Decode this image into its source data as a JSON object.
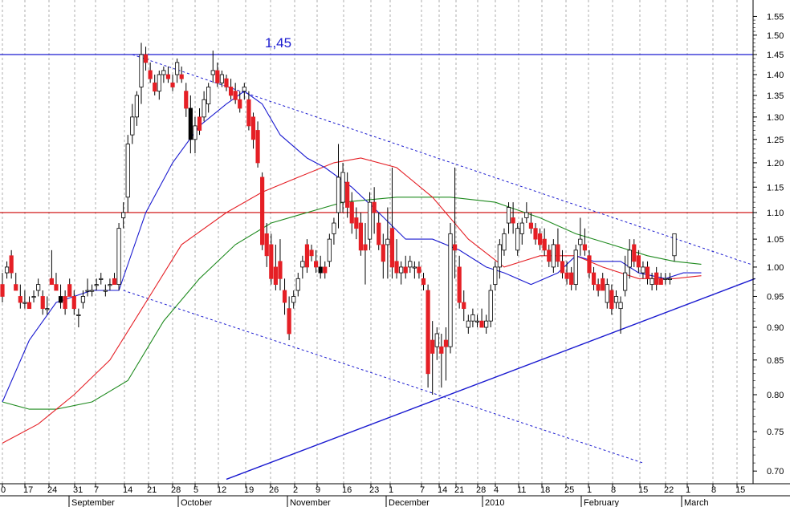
{
  "chart_data": {
    "type": "candlestick",
    "title": "",
    "xlabel": "",
    "ylabel": "",
    "y_scale": "log",
    "ylim": [
      0.69,
      1.58
    ],
    "grid": "vertical-dotted",
    "colors": {
      "up_body": "#ffffff",
      "down_body": "#e51f25",
      "black_body": "#000000",
      "ma_short": "#1a1ad0",
      "ma_mid": "#e51f25",
      "ma_long": "#1e8a1e",
      "trend": "#1a1ad0",
      "h_red": "#cc0000",
      "h_blue": "#1a1ad0"
    },
    "y_ticks": [
      "0.70",
      "0.75",
      "0.80",
      "0.85",
      "0.90",
      "0.95",
      "1.00",
      "1.05",
      "1.10",
      "1.15",
      "1.20",
      "1.25",
      "1.30",
      "1.35",
      "1.40",
      "1.45",
      "1.50",
      "1.55"
    ],
    "x_ticks": [
      "0",
      "17",
      "24",
      "31",
      "7",
      "14",
      "21",
      "28",
      "5",
      "12",
      "19",
      "26",
      "2",
      "9",
      "16",
      "23",
      "1",
      "7",
      "14",
      "21",
      "28",
      "4",
      "11",
      "18",
      "25",
      "1",
      "8",
      "15",
      "22",
      "1",
      "8",
      "15"
    ],
    "months": [
      "September",
      "October",
      "November",
      "December",
      "2010",
      "February",
      "March"
    ],
    "annotations": [
      {
        "text": "1,45",
        "y": 1.45
      }
    ],
    "horizontal_lines": [
      1.45,
      1.1
    ],
    "candles": [
      [
        0.97,
        0.99,
        0.94,
        0.95
      ],
      [
        0.99,
        1.01,
        0.98,
        1.0
      ],
      [
        1.02,
        1.03,
        0.98,
        0.99
      ],
      [
        0.97,
        0.99,
        0.96,
        0.96
      ],
      [
        0.95,
        0.97,
        0.93,
        0.94
      ],
      [
        0.94,
        0.96,
        0.93,
        0.94
      ],
      [
        0.94,
        0.95,
        0.93,
        0.93
      ],
      [
        0.95,
        0.96,
        0.94,
        0.95
      ],
      [
        0.96,
        0.98,
        0.95,
        0.97
      ],
      [
        0.95,
        0.96,
        0.92,
        0.93
      ],
      [
        0.93,
        0.95,
        0.92,
        0.93
      ],
      [
        0.98,
        1.03,
        0.97,
        0.97
      ],
      [
        0.97,
        0.99,
        0.96,
        0.96
      ],
      [
        0.95,
        0.97,
        0.93,
        0.94
      ],
      [
        0.95,
        0.96,
        0.92,
        0.93
      ],
      [
        0.97,
        0.98,
        0.95,
        0.95
      ],
      [
        0.95,
        0.96,
        0.92,
        0.93
      ],
      [
        0.92,
        0.93,
        0.9,
        0.92
      ],
      [
        0.94,
        0.96,
        0.93,
        0.95
      ],
      [
        0.96,
        0.98,
        0.95,
        0.96
      ],
      [
        0.96,
        0.97,
        0.95,
        0.96
      ],
      [
        0.97,
        0.98,
        0.96,
        0.97
      ],
      [
        0.98,
        0.99,
        0.97,
        0.98
      ],
      [
        0.96,
        0.97,
        0.95,
        0.96
      ],
      [
        0.97,
        0.98,
        0.96,
        0.97
      ],
      [
        0.98,
        0.99,
        0.97,
        0.97
      ],
      [
        0.97,
        1.08,
        0.96,
        1.07
      ],
      [
        1.09,
        1.12,
        1.07,
        1.1
      ],
      [
        1.13,
        1.26,
        1.1,
        1.24
      ],
      [
        1.26,
        1.33,
        1.24,
        1.3
      ],
      [
        1.3,
        1.36,
        1.28,
        1.35
      ],
      [
        1.37,
        1.48,
        1.33,
        1.45
      ],
      [
        1.45,
        1.47,
        1.41,
        1.43
      ],
      [
        1.41,
        1.43,
        1.38,
        1.39
      ],
      [
        1.38,
        1.4,
        1.35,
        1.36
      ],
      [
        1.36,
        1.41,
        1.34,
        1.4
      ],
      [
        1.4,
        1.42,
        1.38,
        1.41
      ],
      [
        1.4,
        1.42,
        1.38,
        1.39
      ],
      [
        1.38,
        1.4,
        1.36,
        1.37
      ],
      [
        1.4,
        1.44,
        1.38,
        1.43
      ],
      [
        1.4,
        1.42,
        1.38,
        1.39
      ],
      [
        1.36,
        1.38,
        1.3,
        1.32
      ],
      [
        1.32,
        1.35,
        1.22,
        1.25
      ],
      [
        1.25,
        1.3,
        1.22,
        1.28
      ],
      [
        1.3,
        1.32,
        1.26,
        1.27
      ],
      [
        1.3,
        1.36,
        1.29,
        1.34
      ],
      [
        1.33,
        1.38,
        1.31,
        1.37
      ],
      [
        1.4,
        1.46,
        1.38,
        1.41
      ],
      [
        1.41,
        1.43,
        1.37,
        1.38
      ],
      [
        1.38,
        1.41,
        1.37,
        1.4
      ],
      [
        1.39,
        1.4,
        1.36,
        1.37
      ],
      [
        1.37,
        1.39,
        1.34,
        1.35
      ],
      [
        1.36,
        1.38,
        1.33,
        1.34
      ],
      [
        1.34,
        1.36,
        1.31,
        1.32
      ],
      [
        1.36,
        1.38,
        1.34,
        1.37
      ],
      [
        1.34,
        1.36,
        1.27,
        1.28
      ],
      [
        1.3,
        1.31,
        1.23,
        1.25
      ],
      [
        1.27,
        1.29,
        1.19,
        1.2
      ],
      [
        1.17,
        1.18,
        1.03,
        1.04
      ],
      [
        1.06,
        1.08,
        1.0,
        1.02
      ],
      [
        1.04,
        1.06,
        0.97,
        0.98
      ],
      [
        1.0,
        1.04,
        0.96,
        0.97
      ],
      [
        1.01,
        1.05,
        0.96,
        0.98
      ],
      [
        0.96,
        0.98,
        0.92,
        0.94
      ],
      [
        0.93,
        0.95,
        0.88,
        0.89
      ],
      [
        0.94,
        0.96,
        0.93,
        0.95
      ],
      [
        0.96,
        0.99,
        0.95,
        0.98
      ],
      [
        1.0,
        1.02,
        0.98,
        1.01
      ],
      [
        1.04,
        1.05,
        0.99,
        1.0
      ],
      [
        1.03,
        1.04,
        1.01,
        1.02
      ],
      [
        1.01,
        1.03,
        0.99,
        1.0
      ],
      [
        1.0,
        1.02,
        0.98,
        0.99
      ],
      [
        1.0,
        1.01,
        0.98,
        0.99
      ],
      [
        1.01,
        1.06,
        1.0,
        1.05
      ],
      [
        1.06,
        1.09,
        1.04,
        1.08
      ],
      [
        1.1,
        1.24,
        1.07,
        1.17
      ],
      [
        1.12,
        1.2,
        1.1,
        1.18
      ],
      [
        1.16,
        1.18,
        1.09,
        1.11
      ],
      [
        1.12,
        1.14,
        1.06,
        1.08
      ],
      [
        1.09,
        1.11,
        1.05,
        1.07
      ],
      [
        1.08,
        1.1,
        1.02,
        1.03
      ],
      [
        1.04,
        1.08,
        0.97,
        1.03
      ],
      [
        1.05,
        1.14,
        1.03,
        1.12
      ],
      [
        1.12,
        1.15,
        1.06,
        1.1
      ],
      [
        1.08,
        1.1,
        1.03,
        1.04
      ],
      [
        1.04,
        1.06,
        0.98,
        1.01
      ],
      [
        1.04,
        1.11,
        0.98,
        1.05
      ],
      [
        1.07,
        1.19,
        0.98,
        1.0
      ],
      [
        1.01,
        1.05,
        0.98,
        0.99
      ],
      [
        0.99,
        1.01,
        0.97,
        1.0
      ],
      [
        1.0,
        1.02,
        0.98,
        0.99
      ],
      [
        1.0,
        1.02,
        0.99,
        1.01
      ],
      [
        1.0,
        1.01,
        0.98,
        1.0
      ],
      [
        1.0,
        1.01,
        0.98,
        0.99
      ],
      [
        0.98,
        0.99,
        0.96,
        0.97
      ],
      [
        0.96,
        0.97,
        0.81,
        0.83
      ],
      [
        0.88,
        0.91,
        0.8,
        0.86
      ],
      [
        0.87,
        0.9,
        0.85,
        0.89
      ],
      [
        0.87,
        0.89,
        0.81,
        0.86
      ],
      [
        0.88,
        0.9,
        0.82,
        0.87
      ],
      [
        0.87,
        1.08,
        0.86,
        1.06
      ],
      [
        1.04,
        1.19,
        0.98,
        1.03
      ],
      [
        1.0,
        1.02,
        0.93,
        0.94
      ],
      [
        0.94,
        0.96,
        0.91,
        0.93
      ],
      [
        0.9,
        0.92,
        0.89,
        0.91
      ],
      [
        0.91,
        0.93,
        0.9,
        0.92
      ],
      [
        0.91,
        0.92,
        0.9,
        0.91
      ],
      [
        0.91,
        0.93,
        0.9,
        0.9
      ],
      [
        0.9,
        0.92,
        0.89,
        0.91
      ],
      [
        0.91,
        0.97,
        0.9,
        0.96
      ],
      [
        0.97,
        1.01,
        0.96,
        1.0
      ],
      [
        1.0,
        1.05,
        0.98,
        1.04
      ],
      [
        1.03,
        1.07,
        1.02,
        1.06
      ],
      [
        1.08,
        1.12,
        1.06,
        1.11
      ],
      [
        1.09,
        1.12,
        1.06,
        1.08
      ],
      [
        1.03,
        1.08,
        1.02,
        1.07
      ],
      [
        1.06,
        1.09,
        1.04,
        1.08
      ],
      [
        1.09,
        1.12,
        1.08,
        1.1
      ],
      [
        1.08,
        1.1,
        1.06,
        1.07
      ],
      [
        1.07,
        1.08,
        1.04,
        1.05
      ],
      [
        1.06,
        1.07,
        1.03,
        1.04
      ],
      [
        1.05,
        1.07,
        1.02,
        1.03
      ],
      [
        1.03,
        1.04,
        1.0,
        1.01
      ],
      [
        1.0,
        1.05,
        0.99,
        1.04
      ],
      [
        1.04,
        1.07,
        1.0,
        1.01
      ],
      [
        1.01,
        1.03,
        0.98,
        0.99
      ],
      [
        0.99,
        1.01,
        0.97,
        0.98
      ],
      [
        0.99,
        1.0,
        0.96,
        0.97
      ],
      [
        0.97,
        1.04,
        0.96,
        1.03
      ],
      [
        1.04,
        1.09,
        1.02,
        1.05
      ],
      [
        1.04,
        1.07,
        1.02,
        1.03
      ],
      [
        1.02,
        1.03,
        0.98,
        0.99
      ],
      [
        0.99,
        1.0,
        0.96,
        0.97
      ],
      [
        0.97,
        0.98,
        0.95,
        0.96
      ],
      [
        0.98,
        0.99,
        0.96,
        0.96
      ],
      [
        0.94,
        0.98,
        0.93,
        0.97
      ],
      [
        0.96,
        0.97,
        0.92,
        0.93
      ],
      [
        0.94,
        0.96,
        0.93,
        0.95
      ],
      [
        0.93,
        0.95,
        0.89,
        0.94
      ],
      [
        0.96,
        1.02,
        0.95,
        0.99
      ],
      [
        1.0,
        1.05,
        0.98,
        1.03
      ],
      [
        1.04,
        1.05,
        1.0,
        1.01
      ],
      [
        1.02,
        1.03,
        0.99,
        1.0
      ],
      [
        0.99,
        1.01,
        0.98,
        1.0
      ],
      [
        1.0,
        1.01,
        0.97,
        0.98
      ],
      [
        0.97,
        0.99,
        0.96,
        0.98
      ],
      [
        0.99,
        1.0,
        0.96,
        0.97
      ],
      [
        0.98,
        0.99,
        0.97,
        0.97
      ],
      [
        0.98,
        0.99,
        0.97,
        0.98
      ],
      [
        0.98,
        0.99,
        0.97,
        0.98
      ],
      [
        1.02,
        1.06,
        1.01,
        1.06
      ]
    ],
    "ma_short": [
      [
        0,
        0.79
      ],
      [
        6,
        0.88
      ],
      [
        12,
        0.94
      ],
      [
        20,
        0.96
      ],
      [
        26,
        0.96
      ],
      [
        32,
        1.1
      ],
      [
        38,
        1.2
      ],
      [
        44,
        1.28
      ],
      [
        50,
        1.33
      ],
      [
        54,
        1.36
      ],
      [
        58,
        1.33
      ],
      [
        62,
        1.26
      ],
      [
        68,
        1.21
      ],
      [
        72,
        1.19
      ],
      [
        78,
        1.15
      ],
      [
        84,
        1.1
      ],
      [
        90,
        1.05
      ],
      [
        96,
        1.05
      ],
      [
        102,
        1.03
      ],
      [
        108,
        1.0
      ],
      [
        112,
        0.99
      ],
      [
        118,
        0.97
      ],
      [
        124,
        0.99
      ],
      [
        128,
        1.02
      ],
      [
        132,
        1.01
      ],
      [
        138,
        1.01
      ],
      [
        142,
        0.99
      ],
      [
        148,
        0.98
      ],
      [
        152,
        0.99
      ],
      [
        156,
        0.99
      ]
    ],
    "ma_mid": [
      [
        0,
        0.735
      ],
      [
        8,
        0.76
      ],
      [
        16,
        0.8
      ],
      [
        24,
        0.85
      ],
      [
        32,
        0.94
      ],
      [
        40,
        1.04
      ],
      [
        50,
        1.1
      ],
      [
        58,
        1.14
      ],
      [
        66,
        1.17
      ],
      [
        74,
        1.2
      ],
      [
        80,
        1.21
      ],
      [
        88,
        1.19
      ],
      [
        96,
        1.13
      ],
      [
        104,
        1.05
      ],
      [
        112,
        1.0
      ],
      [
        120,
        1.02
      ],
      [
        128,
        1.02
      ],
      [
        134,
        1.0
      ],
      [
        142,
        0.98
      ],
      [
        150,
        0.98
      ],
      [
        156,
        0.985
      ]
    ],
    "ma_long": [
      [
        0,
        0.79
      ],
      [
        6,
        0.78
      ],
      [
        12,
        0.78
      ],
      [
        20,
        0.79
      ],
      [
        28,
        0.82
      ],
      [
        36,
        0.91
      ],
      [
        44,
        0.98
      ],
      [
        52,
        1.04
      ],
      [
        60,
        1.08
      ],
      [
        68,
        1.1
      ],
      [
        76,
        1.12
      ],
      [
        88,
        1.13
      ],
      [
        100,
        1.13
      ],
      [
        110,
        1.12
      ],
      [
        120,
        1.09
      ],
      [
        128,
        1.06
      ],
      [
        136,
        1.04
      ],
      [
        144,
        1.02
      ],
      [
        150,
        1.01
      ],
      [
        156,
        1.005
      ]
    ],
    "trendlines": [
      {
        "style": "solid",
        "from": [
          50,
          0.69
        ],
        "to": [
          168,
          0.98
        ]
      },
      {
        "style": "dotted",
        "from": [
          29,
          1.45
        ],
        "to": [
          167,
          1.005
        ]
      },
      {
        "style": "dotted",
        "from": [
          27,
          0.96
        ],
        "to": [
          143,
          0.71
        ]
      }
    ]
  }
}
